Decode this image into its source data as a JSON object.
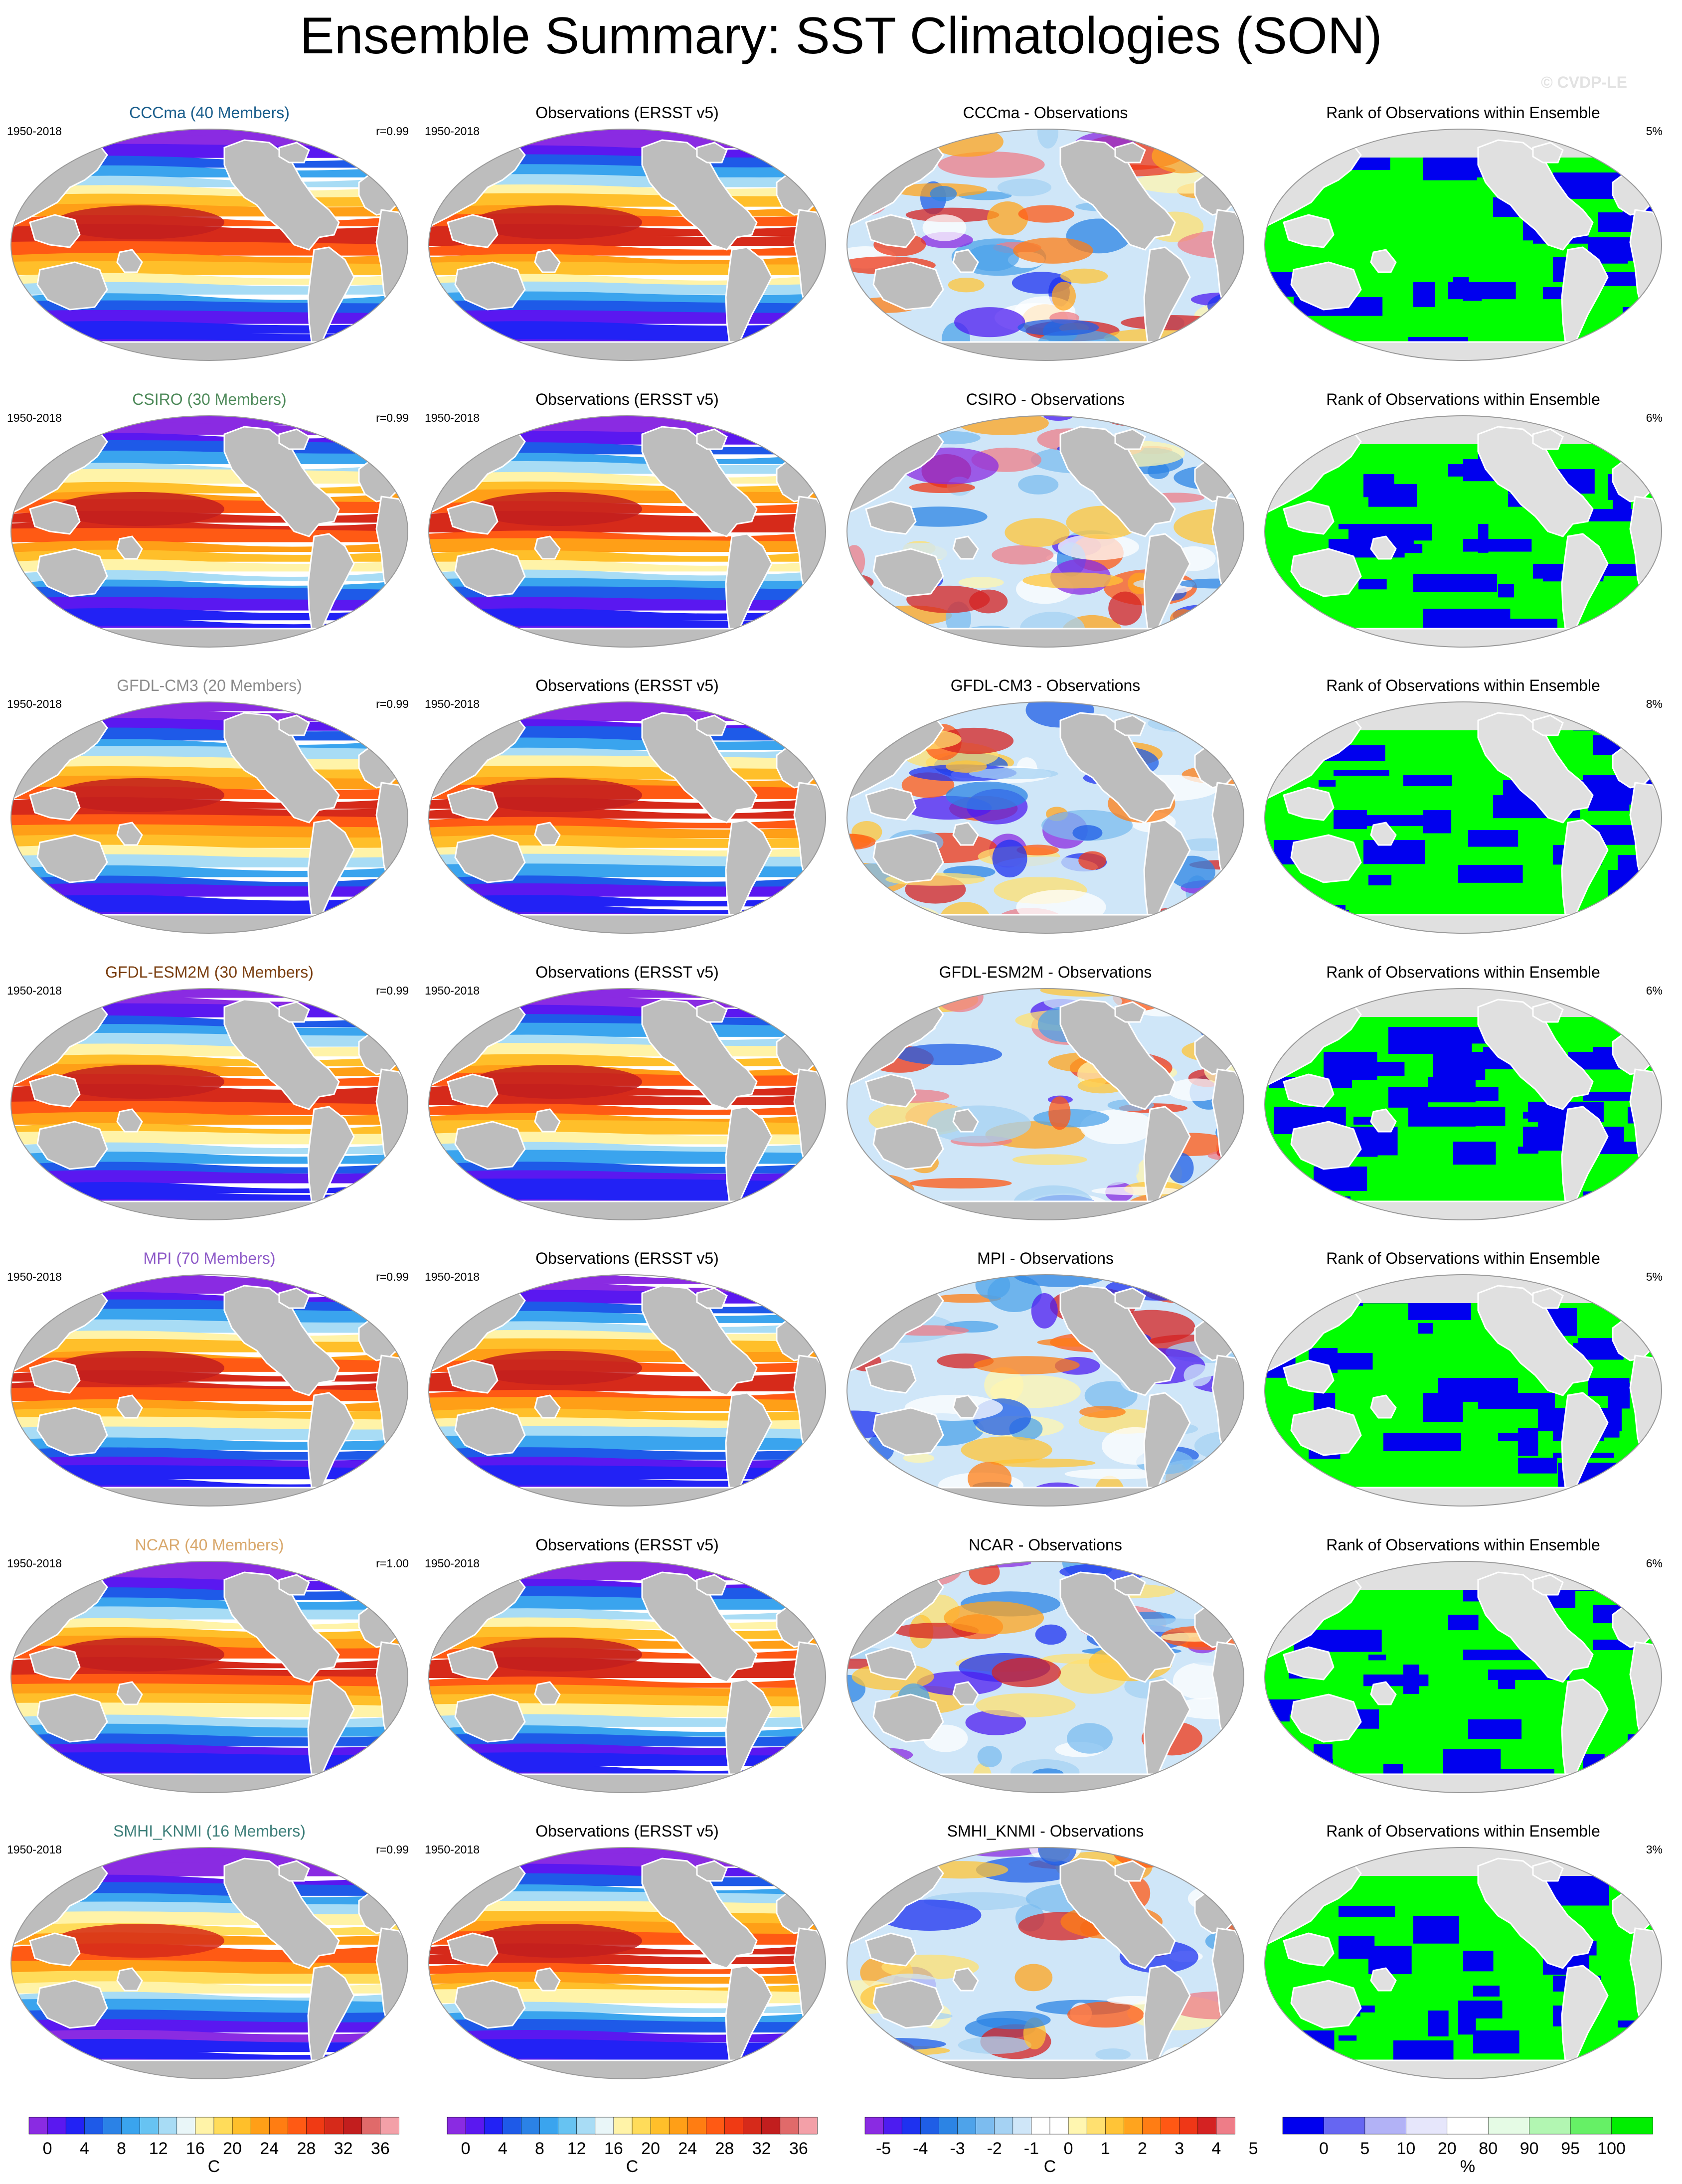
{
  "title": "Ensemble Summary: SST Climatologies (SON)",
  "watermark": "© CVDP-LE",
  "colors": {
    "land_sst": "#bdbdbd",
    "land_rank": "#e0e0e0",
    "ocean_outline": "#999999",
    "rank_low": "#0000ee",
    "rank_high": "#00ff00"
  },
  "rows": [
    {
      "model": {
        "title": "CCCma (40 Members)",
        "title_color": "#1a5e8c",
        "years": "1950-2018",
        "corr": "r=0.99"
      },
      "obs": {
        "title": "Observations (ERSST v5)",
        "years": "1950-2018"
      },
      "diff": {
        "title": "CCCma - Observations"
      },
      "rank": {
        "title": "Rank of Observations within Ensemble",
        "pct": "5%"
      }
    },
    {
      "model": {
        "title": "CSIRO (30 Members)",
        "title_color": "#4e8a5a",
        "years": "1950-2018",
        "corr": "r=0.99"
      },
      "obs": {
        "title": "Observations (ERSST v5)",
        "years": "1950-2018"
      },
      "diff": {
        "title": "CSIRO - Observations"
      },
      "rank": {
        "title": "Rank of Observations within Ensemble",
        "pct": "6%"
      }
    },
    {
      "model": {
        "title": "GFDL-CM3 (20 Members)",
        "title_color": "#8c8c8c",
        "years": "1950-2018",
        "corr": "r=0.99"
      },
      "obs": {
        "title": "Observations (ERSST v5)",
        "years": "1950-2018"
      },
      "diff": {
        "title": "GFDL-CM3 - Observations"
      },
      "rank": {
        "title": "Rank of Observations within Ensemble",
        "pct": "8%"
      }
    },
    {
      "model": {
        "title": "GFDL-ESM2M (30 Members)",
        "title_color": "#7a3e10",
        "years": "1950-2018",
        "corr": "r=0.99"
      },
      "obs": {
        "title": "Observations (ERSST v5)",
        "years": "1950-2018"
      },
      "diff": {
        "title": "GFDL-ESM2M - Observations"
      },
      "rank": {
        "title": "Rank of Observations within Ensemble",
        "pct": "6%"
      }
    },
    {
      "model": {
        "title": "MPI (70 Members)",
        "title_color": "#8e5ac8",
        "years": "1950-2018",
        "corr": "r=0.99"
      },
      "obs": {
        "title": "Observations (ERSST v5)",
        "years": "1950-2018"
      },
      "diff": {
        "title": "MPI - Observations"
      },
      "rank": {
        "title": "Rank of Observations within Ensemble",
        "pct": "5%"
      }
    },
    {
      "model": {
        "title": "NCAR (40 Members)",
        "title_color": "#d9a86c",
        "years": "1950-2018",
        "corr": "r=1.00"
      },
      "obs": {
        "title": "Observations (ERSST v5)",
        "years": "1950-2018"
      },
      "diff": {
        "title": "NCAR - Observations"
      },
      "rank": {
        "title": "Rank of Observations within Ensemble",
        "pct": "6%"
      }
    },
    {
      "model": {
        "title": "SMHI_KNMI (16 Members)",
        "title_color": "#3e7f7a",
        "years": "1950-2018",
        "corr": "r=0.99"
      },
      "obs": {
        "title": "Observations (ERSST v5)",
        "years": "1950-2018"
      },
      "diff": {
        "title": "SMHI_KNMI - Observations"
      },
      "rank": {
        "title": "Rank of Observations within Ensemble",
        "pct": "3%"
      }
    }
  ],
  "colorbars": {
    "sst": {
      "unit": "C",
      "labels": [
        "0",
        "4",
        "8",
        "12",
        "16",
        "20",
        "24",
        "28",
        "32",
        "36"
      ],
      "colors": [
        "#8a2be2",
        "#5a18f0",
        "#2222f5",
        "#1e5ae8",
        "#2b82e6",
        "#3aa4ee",
        "#67c3f2",
        "#a8dcf5",
        "#e9f6f8",
        "#fff3a8",
        "#ffdc5a",
        "#ffbf2a",
        "#ff9f17",
        "#ff7d12",
        "#ff5a14",
        "#f03a14",
        "#d62a1a",
        "#c21e1e",
        "#e06a6a",
        "#f3a0a8"
      ]
    },
    "diff": {
      "unit": "C",
      "labels": [
        "-5",
        "-4",
        "-3",
        "-2",
        "-1",
        "0",
        "1",
        "2",
        "3",
        "4",
        "5"
      ],
      "colors": [
        "#8a2be2",
        "#4d1cf0",
        "#1e32f0",
        "#1f5ee6",
        "#2c84e4",
        "#4ea3ea",
        "#7cbcef",
        "#a5d2f3",
        "#cfe6f8",
        "#ffffff",
        "#ffffff",
        "#fff6b0",
        "#ffe070",
        "#ffc437",
        "#ffa41e",
        "#ff7d14",
        "#ff5814",
        "#ef3717",
        "#d42222",
        "#ee7d88"
      ]
    },
    "rank": {
      "unit": "%",
      "labels": [
        "0",
        "5",
        "10",
        "20",
        "80",
        "90",
        "95",
        "100"
      ],
      "colors": [
        "#0000ee",
        "#6666f2",
        "#b2b2f6",
        "#e6e6fb",
        "#ffffff",
        "#e5fbe5",
        "#b2f6b2",
        "#66f066",
        "#00ee00"
      ]
    }
  }
}
